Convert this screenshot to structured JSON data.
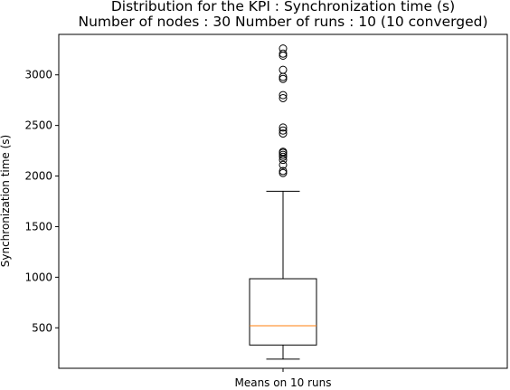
{
  "chart_data": {
    "type": "box",
    "title": "Distribution for the KPI : Synchronization time (s)",
    "subtitle": "Number of nodes : 30   Number of runs : 10 (10 converged)",
    "xlabel": "",
    "ylabel": "Synchronization time (s)",
    "categories": [
      "Means on 10 runs"
    ],
    "ylim": [
      100,
      3400
    ],
    "yticks": [
      500,
      1000,
      1500,
      2000,
      2500,
      3000
    ],
    "ytick_labels": [
      "500",
      "1000",
      "1500",
      "2000",
      "2500",
      "3000"
    ],
    "grid": false,
    "boxes": [
      {
        "category": "Means on 10 runs",
        "whisker_low": 190,
        "q1": 330,
        "median": 520,
        "q3": 985,
        "whisker_high": 1850,
        "outliers": [
          2030,
          2050,
          2110,
          2160,
          2190,
          2210,
          2230,
          2240,
          2420,
          2450,
          2480,
          2770,
          2800,
          2960,
          2980,
          3050,
          3190,
          3210,
          3260
        ]
      }
    ],
    "colors": {
      "box": "#000000",
      "median": "#ff7f0e",
      "outlier": "#000000"
    }
  }
}
